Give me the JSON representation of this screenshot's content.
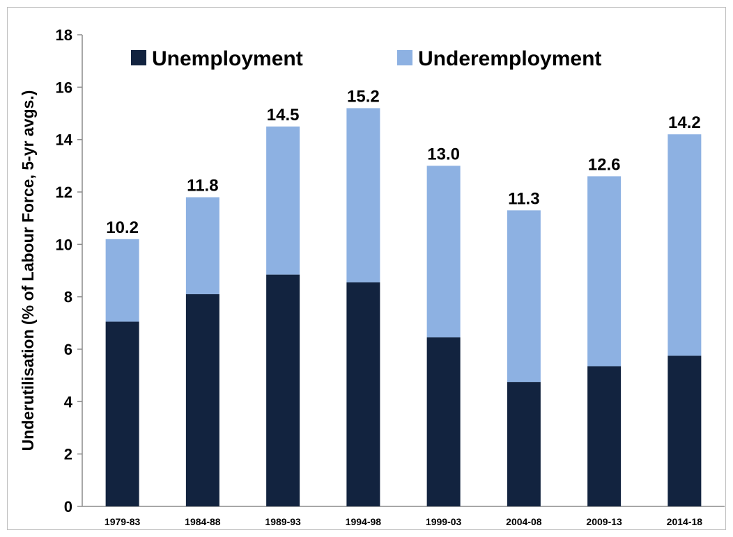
{
  "chart_data": {
    "type": "bar",
    "stacked": true,
    "categories": [
      "1979-83",
      "1984-88",
      "1989-93",
      "1994-98",
      "1999-03",
      "2004-08",
      "2009-13",
      "2014-18"
    ],
    "series": [
      {
        "name": "Unemployment",
        "color": "#12233f",
        "values": [
          7.05,
          8.1,
          8.85,
          8.55,
          6.45,
          4.75,
          5.35,
          5.75
        ]
      },
      {
        "name": "Underemployment",
        "color": "#8db1e2",
        "values": [
          3.15,
          3.7,
          5.65,
          6.65,
          6.55,
          6.55,
          7.25,
          8.45
        ]
      }
    ],
    "totals_labels": [
      "10.2",
      "11.8",
      "14.5",
      "15.2",
      "13.0",
      "11.3",
      "12.6",
      "14.2"
    ],
    "ylabel": "Underutilisation (% of Labour Force, 5-yr avgs.)",
    "xlabel": "",
    "ylim": [
      0,
      18
    ],
    "yticks": [
      0,
      2,
      4,
      6,
      8,
      10,
      12,
      14,
      16,
      18
    ],
    "grid": false,
    "legend": "top-left"
  }
}
